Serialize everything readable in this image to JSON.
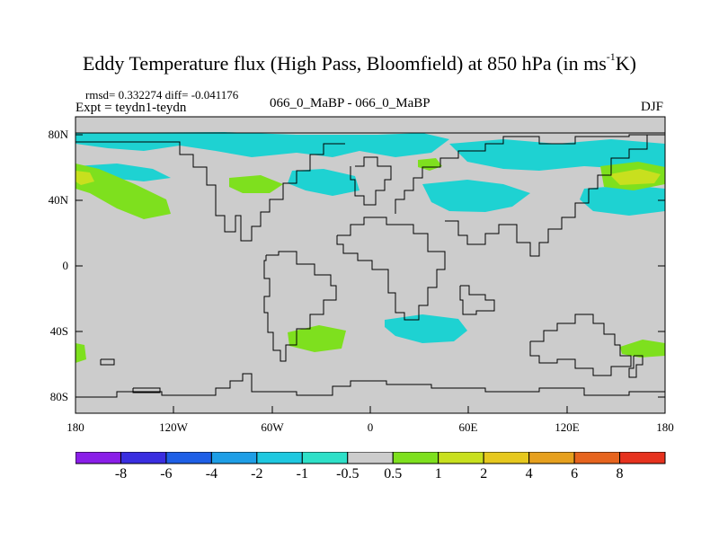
{
  "title": {
    "main": "Eddy Temperature flux (High Pass, Bloomfield) at 850 hPa (in ms",
    "sup": "-1",
    "tail": "K)"
  },
  "stats": "rmsd= 0.332274 diff= -0.041176",
  "expt": "Expt = teydn1-teydn",
  "case": "066_0_MaBP - 066_0_MaBP",
  "season": "DJF",
  "lat_labels": [
    "80N",
    "40N",
    "0",
    "40S",
    "80S"
  ],
  "lon_labels": [
    "180",
    "120W",
    "60W",
    "0",
    "60E",
    "120E",
    "180"
  ],
  "colorbar": {
    "labels": [
      "-8",
      "-6",
      "-4",
      "-2",
      "-1",
      "-0.5",
      "0.5",
      "1",
      "2",
      "4",
      "6",
      "8"
    ],
    "colors": [
      "#8a1ee8",
      "#3a2ee0",
      "#1e5fe6",
      "#1e9ee6",
      "#1ec8e0",
      "#2ee0c8",
      "#cccccc",
      "#7ee01e",
      "#c8e01e",
      "#e6c81e",
      "#e6a01e",
      "#e6641e",
      "#e6321e"
    ]
  },
  "map": {
    "background_value_color": "#cccccc",
    "features": [
      {
        "name": "cyan-band-north-pacific",
        "color": "#1ed2d2"
      },
      {
        "name": "cyan-band-north-atlantic",
        "color": "#1ed2d2"
      },
      {
        "name": "cyan-band-siberia",
        "color": "#1ed2d2"
      },
      {
        "name": "green-positive-northwest-pacific",
        "color": "#7ee01e"
      },
      {
        "name": "yellow-positive-northwest-pacific",
        "color": "#c8e01e"
      },
      {
        "name": "green-positive-north-america",
        "color": "#7ee01e"
      },
      {
        "name": "cyan-negative-south-africa",
        "color": "#1ed2d2"
      },
      {
        "name": "green-positive-south-atlantic",
        "color": "#7ee01e"
      }
    ]
  }
}
